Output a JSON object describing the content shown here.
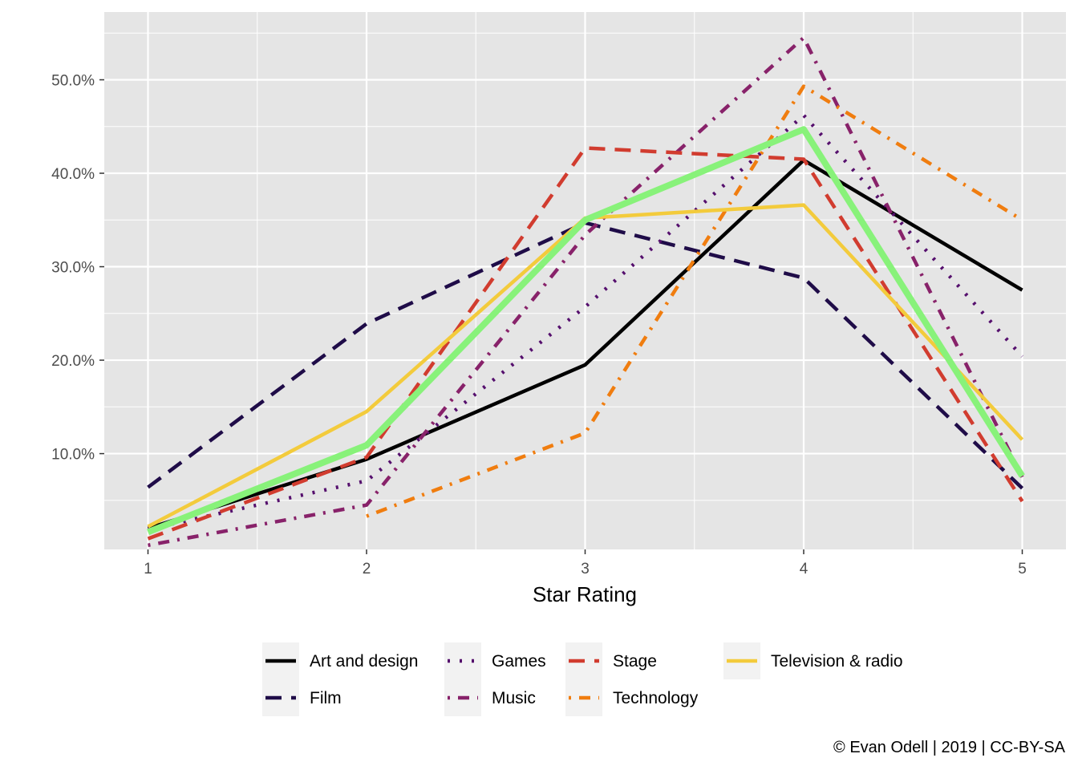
{
  "chart_data": {
    "type": "line",
    "title": "",
    "xlabel": "Star Rating",
    "ylabel": "",
    "x": [
      1,
      2,
      3,
      4,
      5
    ],
    "x_tick_labels": [
      "1",
      "2",
      "3",
      "4",
      "5"
    ],
    "xlim": [
      0.8,
      5.2
    ],
    "ylim": [
      -0.0025,
      0.5725
    ],
    "y_ticks": [
      0.1,
      0.2,
      0.3,
      0.4,
      0.5
    ],
    "y_tick_labels": [
      "10.0%",
      "20.0%",
      "30.0%",
      "40.0%",
      "50.0%"
    ],
    "grid": true,
    "legend_position": "bottom",
    "series": [
      {
        "name": "Art and design",
        "values": [
          0.02,
          0.094,
          0.195,
          0.414,
          0.275
        ],
        "color": "#000000",
        "dash": "solid",
        "width": 4.5
      },
      {
        "name": "Film",
        "values": [
          0.064,
          0.239,
          0.347,
          0.288,
          0.063
        ],
        "color": "#1f0c48",
        "dash": "longdash",
        "width": 4.5
      },
      {
        "name": "Games",
        "values": [
          0.019,
          0.071,
          0.257,
          0.462,
          0.204
        ],
        "color": "#550f6d",
        "dash": "dotted",
        "width": 4.5
      },
      {
        "name": "Music",
        "values": [
          0.002,
          0.045,
          0.334,
          0.545,
          0.075
        ],
        "color": "#88226a",
        "dash": "dotdash",
        "width": 4.5
      },
      {
        "name": "Stage",
        "values": [
          0.009,
          0.096,
          0.427,
          0.415,
          0.049
        ],
        "color": "#d13c2f",
        "dash": "longdash",
        "width": 4.5
      },
      {
        "name": "Technology",
        "values": [
          null,
          0.033,
          0.122,
          0.493,
          0.35
        ],
        "color": "#f07d0f",
        "dash": "dotdash",
        "width": 4.5
      },
      {
        "name": "Television & radio",
        "values": [
          0.022,
          0.145,
          0.352,
          0.366,
          0.115
        ],
        "color": "#f3cb3c",
        "dash": "solid",
        "width": 4.5
      },
      {
        "name": "",
        "values": [
          0.016,
          0.109,
          0.35,
          0.447,
          0.076
        ],
        "color": "#88f27a",
        "dash": "solid",
        "width": 8
      }
    ],
    "legend": [
      {
        "label": "Art and design",
        "color": "#000000",
        "dash": "solid"
      },
      {
        "label": "Film",
        "color": "#1f0c48",
        "dash": "longdash"
      },
      {
        "label": "Games",
        "color": "#550f6d",
        "dash": "dotted"
      },
      {
        "label": "Music",
        "color": "#88226a",
        "dash": "dotdash"
      },
      {
        "label": "Stage",
        "color": "#d13c2f",
        "dash": "longdash"
      },
      {
        "label": "Technology",
        "color": "#f07d0f",
        "dash": "dotdash"
      },
      {
        "label": "Television & radio",
        "color": "#f3cb3c",
        "dash": "solid"
      }
    ],
    "caption": "© Evan Odell | 2019 | CC-BY-SA",
    "panel_background": "#e5e5e5",
    "grid_color": "#ffffff"
  }
}
